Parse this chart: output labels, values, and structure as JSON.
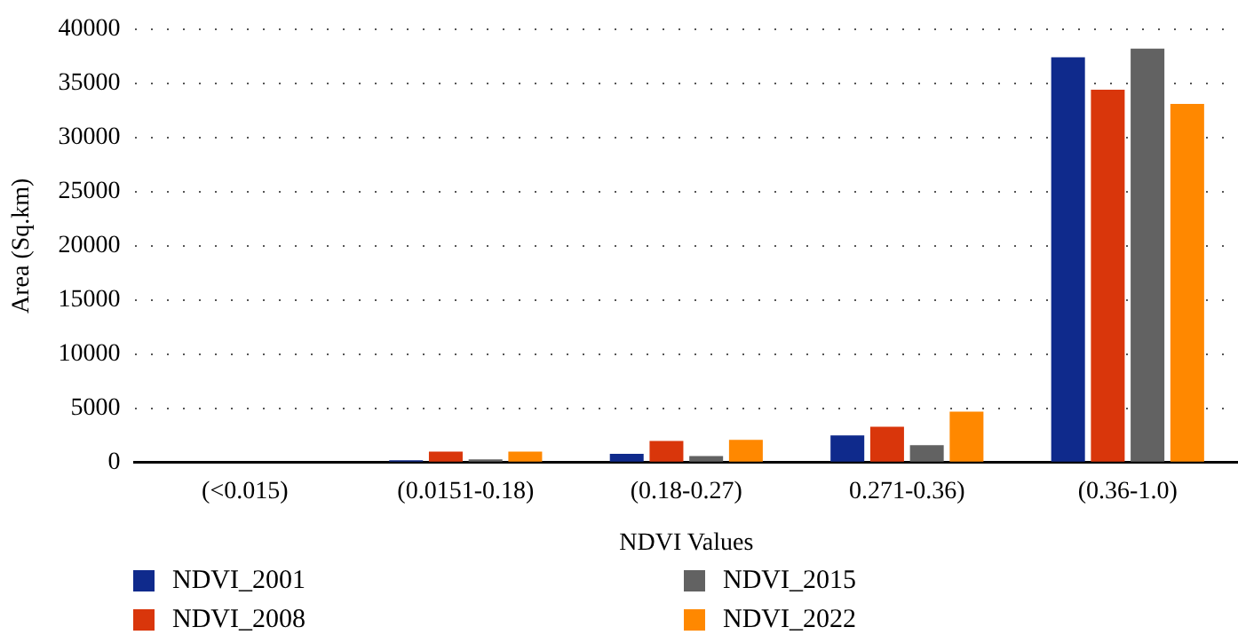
{
  "chart_data": {
    "type": "bar",
    "xlabel": "NDVI Values",
    "ylabel": "Area (Sq.km)",
    "categories": [
      "(<0.015)",
      "(0.0151-0.18)",
      "(0.18-0.27)",
      "0.271-0.36)",
      "(0.36-1.0)"
    ],
    "series": [
      {
        "name": "NDVI_2001",
        "color": "#0f2a8c",
        "values": [
          0,
          200,
          800,
          2500,
          37400
        ]
      },
      {
        "name": "NDVI_2008",
        "color": "#d9360b",
        "values": [
          0,
          1000,
          2000,
          3300,
          34400
        ]
      },
      {
        "name": "NDVI_2015",
        "color": "#626262",
        "values": [
          0,
          300,
          600,
          1600,
          38200
        ]
      },
      {
        "name": "NDVI_2022",
        "color": "#ff8800",
        "values": [
          0,
          1000,
          2100,
          4700,
          33100
        ]
      }
    ],
    "ylim": [
      0,
      40000
    ],
    "yticks": [
      0,
      5000,
      10000,
      15000,
      20000,
      25000,
      30000,
      35000,
      40000
    ],
    "grid": "y",
    "legend": "bottom"
  }
}
